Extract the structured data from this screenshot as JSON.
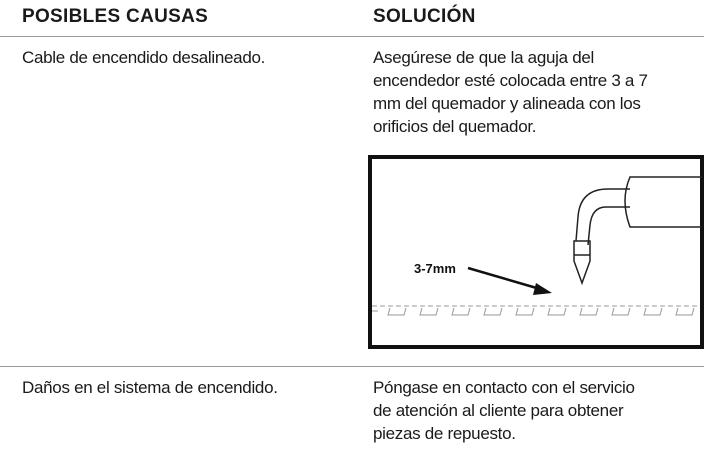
{
  "table": {
    "headers": [
      "POSIBLES CAUSAS",
      "SOLUCIÓN"
    ],
    "rows": [
      {
        "cause": "Cable de encendido desalineado.",
        "solution": [
          "Asegúrese de que la aguja del",
          "encendedor esté colocada entre 3 a 7",
          "mm del quemador y alineada con los",
          "orificios del quemador."
        ],
        "figure_label": "3-7mm"
      },
      {
        "cause": "Daños en el sistema de encendido.",
        "solution": [
          "Póngase en contacto con el servicio",
          "de atención al cliente para obtener",
          "piezas de repuesto."
        ]
      }
    ]
  }
}
